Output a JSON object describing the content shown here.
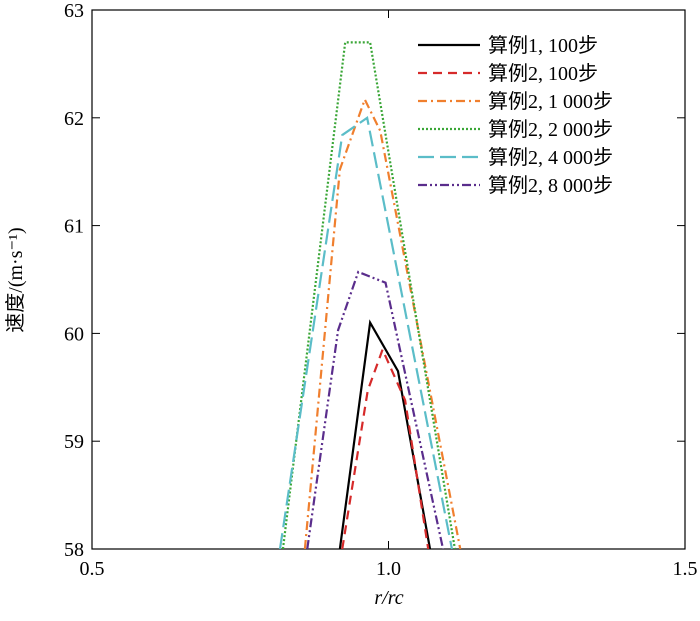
{
  "chart_data": {
    "type": "line",
    "xlabel": "r/rc",
    "ylabel": "速度/(m·s⁻¹)",
    "xlim": [
      0.5,
      1.5
    ],
    "xticks": [
      0.5,
      {
        "value": 1.0,
        "label": "1.0"
      },
      1.5
    ],
    "ylim": [
      58,
      63
    ],
    "yticks": [
      58,
      59,
      60,
      61,
      62,
      63
    ],
    "grid": false,
    "legend": "upper right",
    "series": [
      {
        "name": "算例1, 100步",
        "color": "#000000",
        "x": [
          0.918,
          0.969,
          1.016,
          1.07
        ],
        "values": [
          58,
          60.1,
          59.65,
          58
        ]
      },
      {
        "name": "算例2, 100步",
        "color": "#d62a2a",
        "x": [
          0.922,
          0.965,
          0.99,
          1.028,
          1.067
        ],
        "values": [
          58,
          59.47,
          59.85,
          59.38,
          58
        ]
      },
      {
        "name": "算例2, 1 000步",
        "color": "#f07f2e",
        "x": [
          0.859,
          0.918,
          0.96,
          0.986,
          1.121
        ],
        "values": [
          58,
          61.52,
          62.17,
          61.88,
          58
        ]
      },
      {
        "name": "算例2, 2 000步",
        "color": "#3aa637",
        "x": [
          0.822,
          0.927,
          0.969,
          1.112
        ],
        "values": [
          58,
          62.7,
          62.7,
          58
        ]
      },
      {
        "name": "算例2, 4 000步",
        "color": "#5bbdc8",
        "x": [
          0.817,
          0.922,
          0.964,
          1.107
        ],
        "values": [
          58,
          61.84,
          62.0,
          58
        ]
      },
      {
        "name": "算例2, 8 000步",
        "color": "#5a2d8c",
        "x": [
          0.863,
          0.915,
          0.949,
          0.995,
          1.092
        ],
        "values": [
          58,
          60.03,
          60.57,
          60.47,
          58
        ]
      }
    ]
  }
}
